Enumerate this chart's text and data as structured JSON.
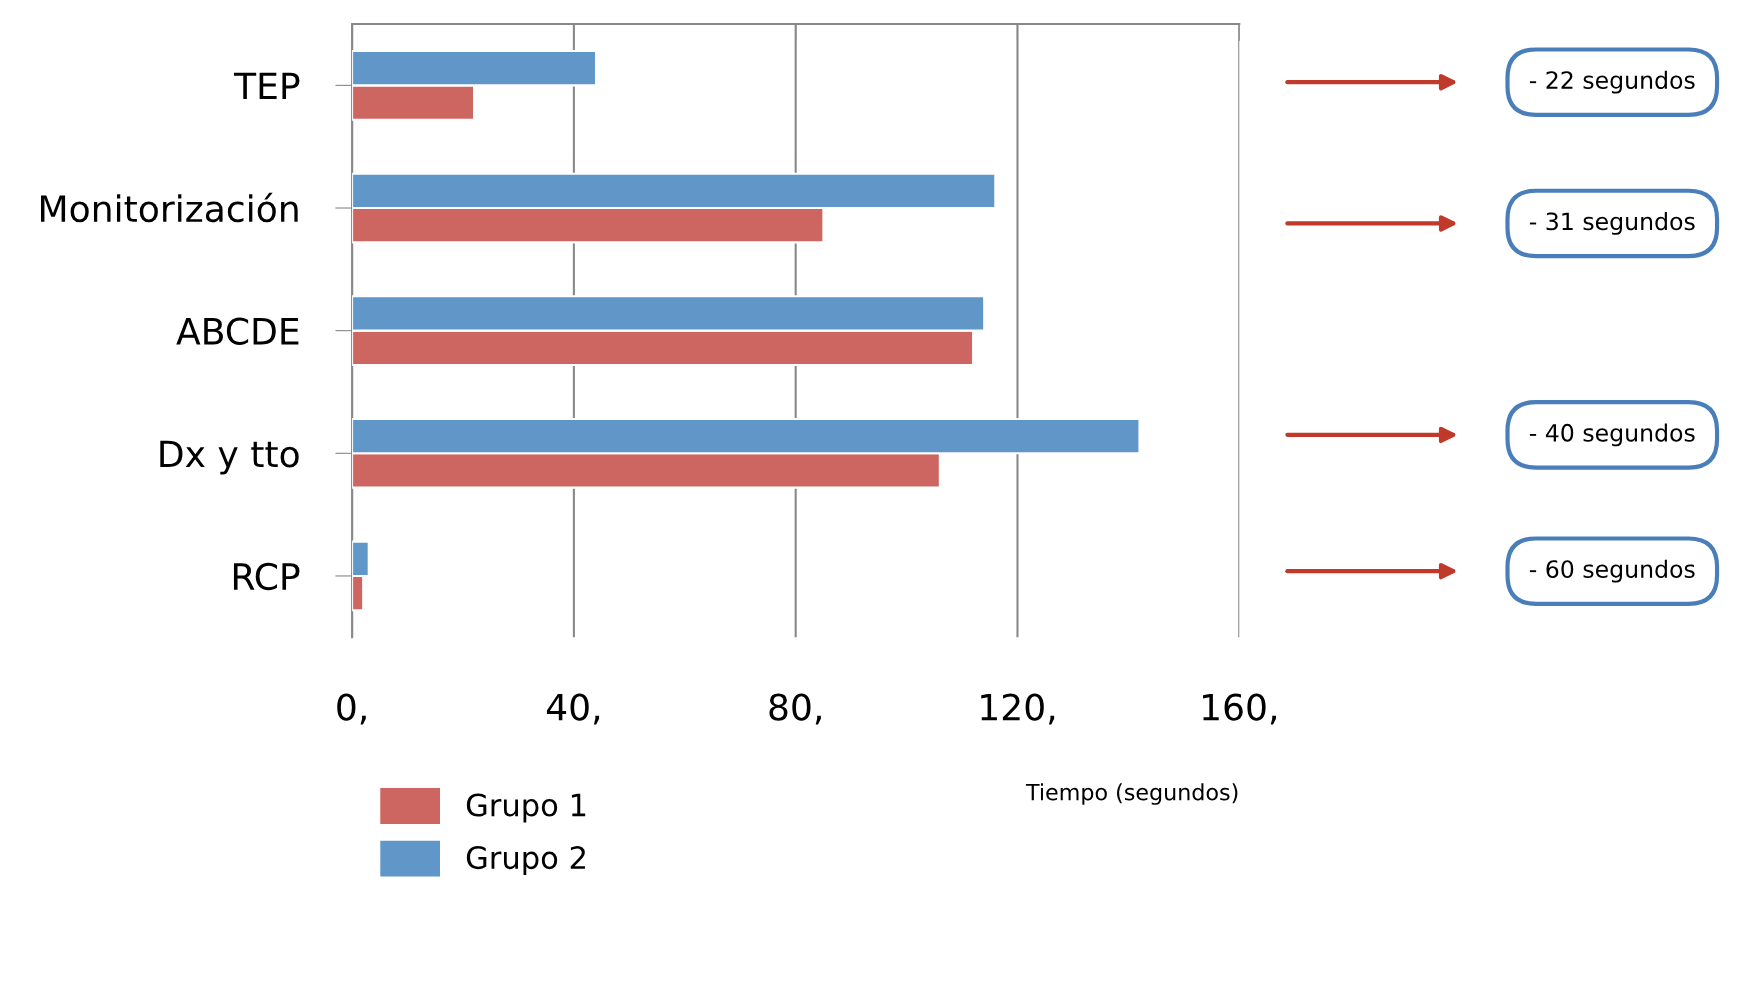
{
  "chart_data": {
    "type": "bar",
    "orientation": "horizontal",
    "xlabel": "Tiempo (segundos)",
    "categories": [
      "TEP",
      "Monitorización",
      "ABCDE",
      "Dx y tto",
      "RCP"
    ],
    "series": [
      {
        "name": "Grupo 1",
        "color": "#cd6660",
        "values": [
          22,
          85,
          112,
          106,
          2
        ]
      },
      {
        "name": "Grupo 2",
        "color": "#6096c8",
        "values": [
          44,
          116,
          114,
          142,
          3
        ]
      }
    ],
    "xlim": [
      0,
      160
    ],
    "xticks": [
      {
        "value": 0,
        "label": "0,"
      },
      {
        "value": 40,
        "label": "40,"
      },
      {
        "value": 80,
        "label": "80,"
      },
      {
        "value": 120,
        "label": "120,"
      },
      {
        "value": 160,
        "label": "160,"
      }
    ],
    "grid": "x",
    "legend": "bottom left",
    "annotations": [
      "- 22 segundos",
      "- 31 segundos",
      "- 40 segundos",
      "- 60 segundos"
    ]
  }
}
